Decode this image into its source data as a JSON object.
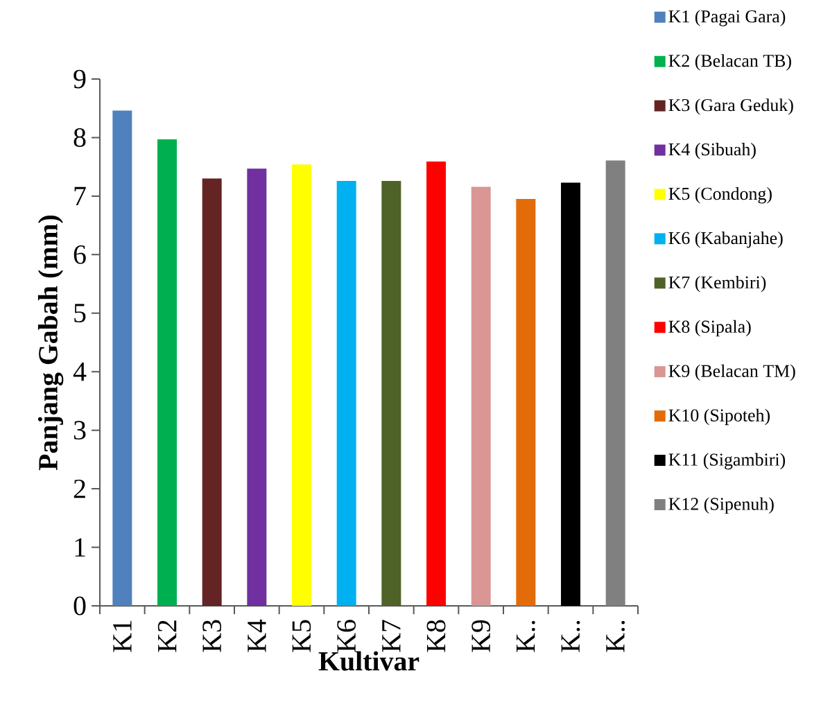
{
  "chart_data": {
    "type": "bar",
    "xlabel": "Kultivar",
    "ylabel": "Panjang Gabah (mm)",
    "categories": [
      "K1",
      "K2",
      "K3",
      "K4",
      "K5",
      "K6",
      "K7",
      "K8",
      "K9",
      "K..",
      "K..",
      "K.."
    ],
    "series": [
      {
        "name": "K1 (Pagai Gara)",
        "color": "#4f81bd",
        "values": [
          8.46,
          null,
          null,
          null,
          null,
          null,
          null,
          null,
          null,
          null,
          null,
          null
        ]
      },
      {
        "name": "K2 (Belacan TB)",
        "color": "#00b050",
        "values": [
          null,
          7.97,
          null,
          null,
          null,
          null,
          null,
          null,
          null,
          null,
          null,
          null
        ]
      },
      {
        "name": "K3 (Gara Geduk)",
        "color": "#632423",
        "values": [
          null,
          null,
          7.3,
          null,
          null,
          null,
          null,
          null,
          null,
          null,
          null,
          null
        ]
      },
      {
        "name": "K4 (Sibuah)",
        "color": "#7030a0",
        "values": [
          null,
          null,
          null,
          7.47,
          null,
          null,
          null,
          null,
          null,
          null,
          null,
          null
        ]
      },
      {
        "name": "K5 (Condong)",
        "color": "#ffff00",
        "values": [
          null,
          null,
          null,
          null,
          7.54,
          null,
          null,
          null,
          null,
          null,
          null,
          null
        ]
      },
      {
        "name": "K6 (Kabanjahe)",
        "color": "#00b0f0",
        "values": [
          null,
          null,
          null,
          null,
          null,
          7.26,
          null,
          null,
          null,
          null,
          null,
          null
        ]
      },
      {
        "name": "K7 (Kembiri)",
        "color": "#4f6228",
        "values": [
          null,
          null,
          null,
          null,
          null,
          null,
          7.26,
          null,
          null,
          null,
          null,
          null
        ]
      },
      {
        "name": "K8 (Sipala)",
        "color": "#ff0000",
        "values": [
          null,
          null,
          null,
          null,
          null,
          null,
          null,
          7.59,
          null,
          null,
          null,
          null
        ]
      },
      {
        "name": "K9 (Belacan TM)",
        "color": "#d99694",
        "values": [
          null,
          null,
          null,
          null,
          null,
          null,
          null,
          null,
          7.16,
          null,
          null,
          null
        ]
      },
      {
        "name": "K10 (Sipoteh)",
        "color": "#e36c09",
        "values": [
          null,
          null,
          null,
          null,
          null,
          null,
          null,
          null,
          null,
          6.95,
          null,
          null
        ]
      },
      {
        "name": "K11 (Sigambiri)",
        "color": "#000000",
        "values": [
          null,
          null,
          null,
          null,
          null,
          null,
          null,
          null,
          null,
          null,
          7.23,
          null
        ]
      },
      {
        "name": "K12 (Sipenuh)",
        "color": "#808080",
        "values": [
          null,
          null,
          null,
          null,
          null,
          null,
          null,
          null,
          null,
          null,
          null,
          7.61
        ]
      }
    ],
    "ylim": [
      0,
      9
    ],
    "yticks": [
      0,
      1,
      2,
      3,
      4,
      5,
      6,
      7,
      8,
      9
    ],
    "legend": "right"
  }
}
